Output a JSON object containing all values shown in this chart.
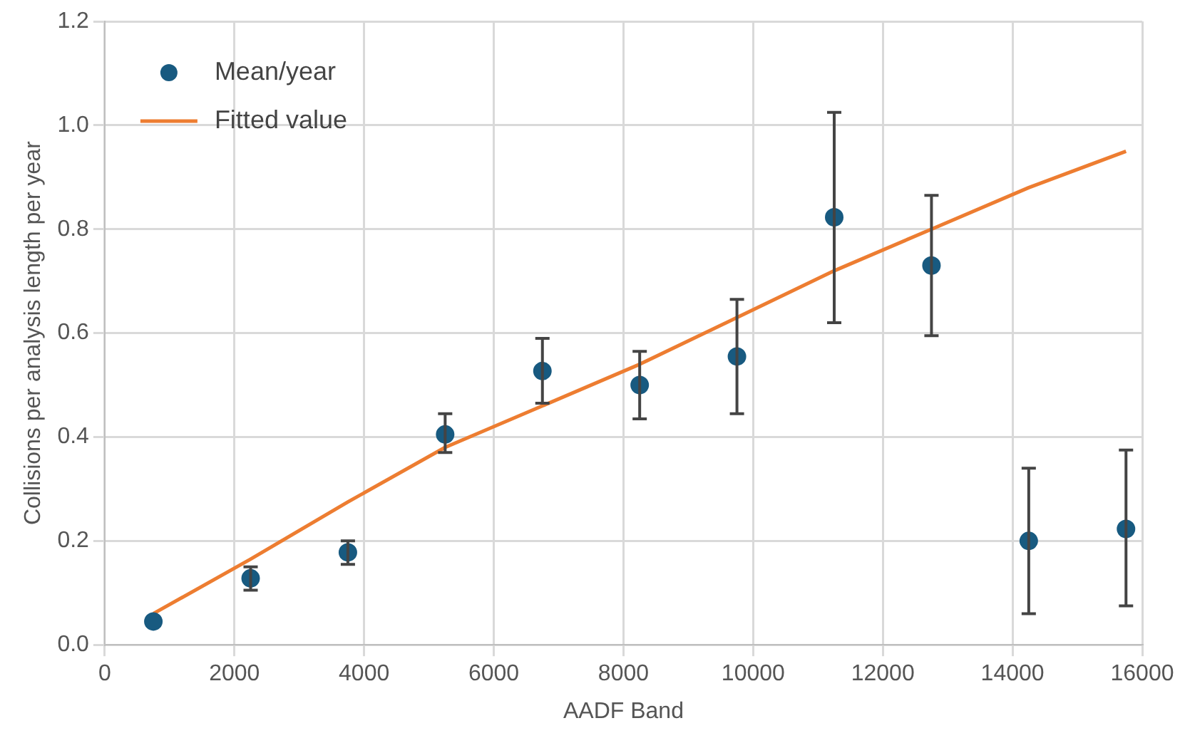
{
  "chart_data": {
    "type": "scatter",
    "xlabel": "AADF Band",
    "ylabel": "Collisions per analysis length per year",
    "xlim": [
      0,
      16000
    ],
    "xticks": [
      0,
      2000,
      4000,
      6000,
      8000,
      10000,
      12000,
      14000,
      16000
    ],
    "ylim": [
      0,
      1.2
    ],
    "yticks": [
      {
        "value": 0,
        "label": "0.0"
      },
      {
        "value": 0.2,
        "label": "0.2"
      },
      {
        "value": 0.4,
        "label": "0.4"
      },
      {
        "value": 0.6,
        "label": "0.6"
      },
      {
        "value": 0.8,
        "label": "0.8"
      },
      {
        "value": 1,
        "label": "1.0"
      },
      {
        "value": 1.2,
        "label": "1.2"
      }
    ],
    "grid": true,
    "legend": "top left",
    "series": [
      {
        "name": "Mean/year",
        "color": "#185a80",
        "marker": "circle",
        "x": [
          750,
          2250,
          3750,
          5250,
          6750,
          8250,
          9750,
          11250,
          12750,
          14250,
          15750
        ],
        "values": [
          0.045,
          0.128,
          0.178,
          0.405,
          0.527,
          0.5,
          0.555,
          0.823,
          0.73,
          0.2,
          0.223
        ],
        "errors": [
          null,
          [
            0.105,
            0.15
          ],
          [
            0.155,
            0.2
          ],
          [
            0.37,
            0.445
          ],
          [
            0.465,
            0.59
          ],
          [
            0.435,
            0.565
          ],
          [
            0.445,
            0.665
          ],
          [
            0.62,
            1.025
          ],
          [
            0.595,
            0.865
          ],
          [
            0.06,
            0.34
          ],
          [
            0.075,
            0.375
          ]
        ]
      },
      {
        "name": "Fitted value",
        "type": "line",
        "color": "#ed7d31",
        "marker": "none",
        "x": [
          750,
          2250,
          3750,
          5250,
          6750,
          8250,
          9750,
          11250,
          12750,
          14250,
          15750
        ],
        "values": [
          0.06,
          0.165,
          0.275,
          0.38,
          0.46,
          0.54,
          0.63,
          0.72,
          0.8,
          0.88,
          0.95
        ]
      }
    ]
  }
}
